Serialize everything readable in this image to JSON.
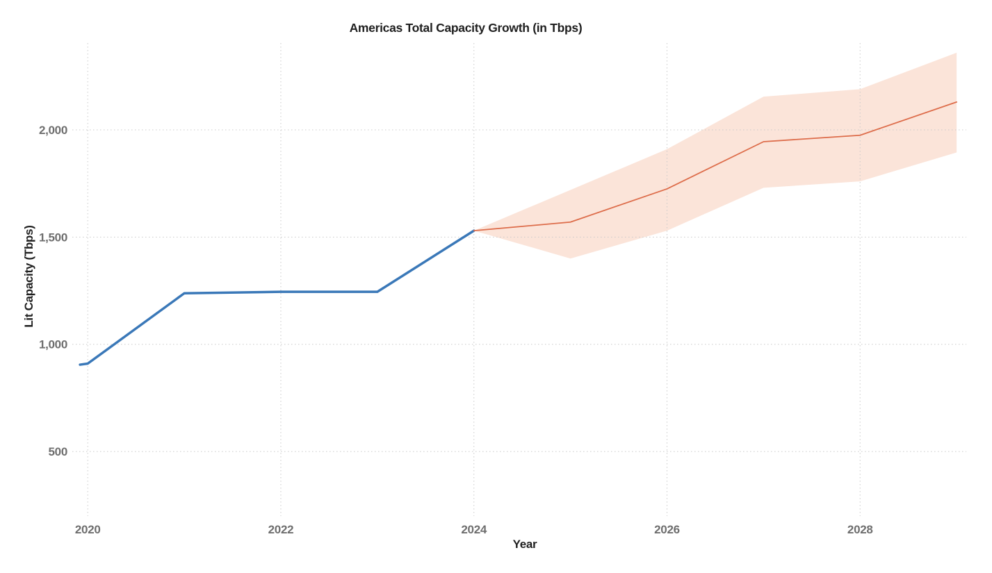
{
  "chart_data": {
    "type": "line",
    "title": "Americas Total Capacity Growth (in Tbps)",
    "xlabel": "Year",
    "ylabel": "Lit Capacity (Tbps)",
    "grid": true,
    "grid_style": "dotted",
    "legend": false,
    "background": "#ffffff",
    "grid_color": "#c9c9c9",
    "tick_color": "#6e6e6e",
    "xlim": [
      2019.84,
      2029.1
    ],
    "ylim": [
      199,
      2405
    ],
    "x_ticks": [
      2020,
      2022,
      2024,
      2026,
      2028
    ],
    "x_tick_labels": [
      "2020",
      "2022",
      "2024",
      "2026",
      "2028"
    ],
    "y_ticks": [
      500,
      1000,
      1500,
      2000
    ],
    "y_tick_labels": [
      "500",
      "1,000",
      "1,500",
      "2,000"
    ],
    "series": [
      {
        "name": "forecast-uncertainty-band",
        "type": "band",
        "fill": "#fbe4d9",
        "x": [
          2024,
          2025,
          2026,
          2027,
          2028,
          2029
        ],
        "y_upper": [
          1530,
          1720,
          1910,
          2155,
          2190,
          2360
        ],
        "y_lower": [
          1530,
          1400,
          1530,
          1730,
          1760,
          1895
        ]
      },
      {
        "name": "historical-lit-capacity",
        "type": "line",
        "color": "#3a78b8",
        "width": 3.5,
        "x": [
          2019.92,
          2020,
          2021,
          2022,
          2023,
          2024
        ],
        "y": [
          905,
          910,
          1238,
          1245,
          1245,
          1530
        ]
      },
      {
        "name": "forecast-lit-capacity",
        "type": "line",
        "color": "#dd6c4a",
        "width": 1.8,
        "x": [
          2024,
          2025,
          2026,
          2027,
          2028,
          2029
        ],
        "y": [
          1530,
          1570,
          1725,
          1945,
          1975,
          2130
        ]
      }
    ]
  }
}
